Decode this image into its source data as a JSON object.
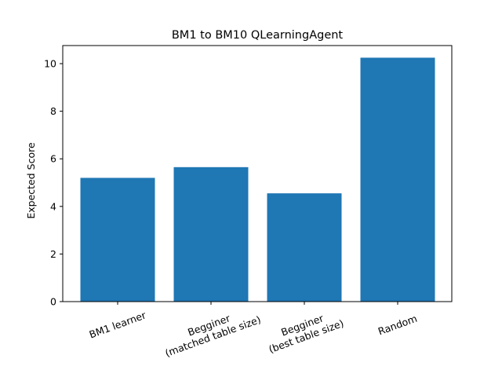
{
  "chart_data": {
    "type": "bar",
    "title": "BM1 to BM10 QLearningAgent",
    "xlabel": "",
    "ylabel": "Expected Score",
    "categories": [
      "BM1 learner",
      "Begginer\n(matched table size)",
      "Begginer\n(best table size)",
      "Random"
    ],
    "values": [
      5.2,
      5.65,
      4.55,
      10.25
    ],
    "ylim": [
      0,
      10.76
    ],
    "yticks": [
      0,
      2,
      4,
      6,
      8,
      10
    ],
    "bar_color": "#1f77b4",
    "grid": false,
    "legend": "none",
    "xtick_rotation_deg": 20
  }
}
